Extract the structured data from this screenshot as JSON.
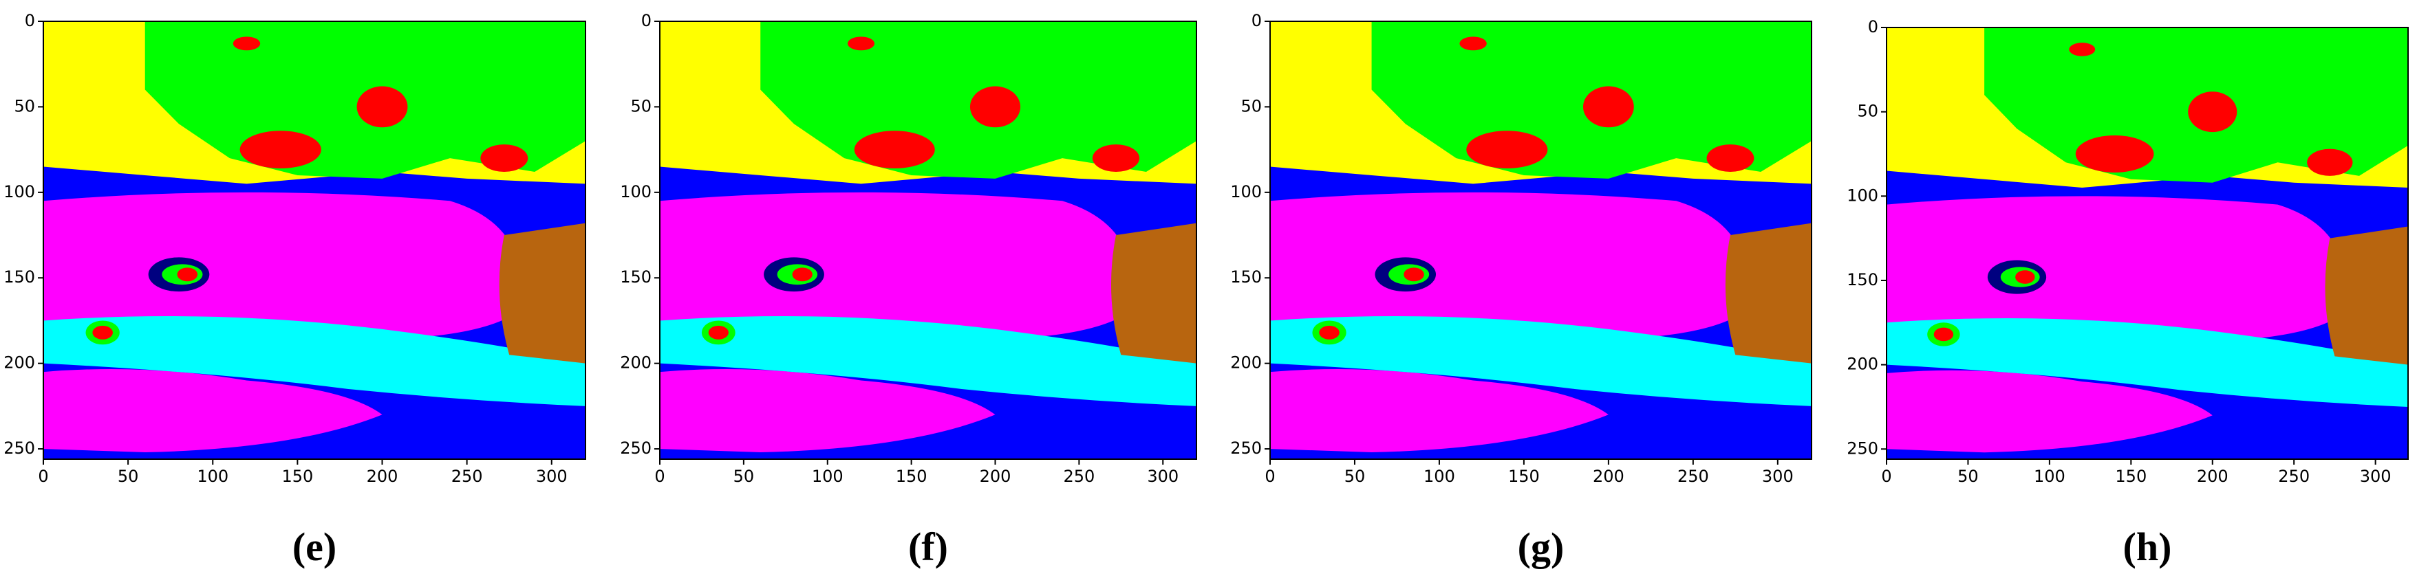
{
  "panels": [
    {
      "label": "(e)",
      "xlim": [
        0,
        320
      ],
      "ylim": [
        256,
        0
      ],
      "xticks": [
        0,
        50,
        100,
        150,
        200,
        250,
        300
      ],
      "yticks": [
        0,
        50,
        100,
        150,
        200,
        250
      ]
    },
    {
      "label": "(f)",
      "xlim": [
        0,
        320
      ],
      "ylim": [
        256,
        0
      ],
      "xticks": [
        0,
        50,
        100,
        150,
        200,
        250,
        300
      ],
      "yticks": [
        0,
        50,
        100,
        150,
        200,
        250
      ]
    },
    {
      "label": "(g)",
      "xlim": [
        0,
        320
      ],
      "ylim": [
        256,
        0
      ],
      "xticks": [
        0,
        50,
        100,
        150,
        200,
        250,
        300
      ],
      "yticks": [
        0,
        50,
        100,
        150,
        200,
        250
      ]
    },
    {
      "label": "(h)",
      "xlim": [
        0,
        320
      ],
      "ylim": [
        256,
        0
      ],
      "xticks": [
        0,
        50,
        100,
        150,
        200,
        250,
        300
      ],
      "yticks": [
        0,
        50,
        100,
        150,
        200,
        250
      ]
    }
  ]
}
